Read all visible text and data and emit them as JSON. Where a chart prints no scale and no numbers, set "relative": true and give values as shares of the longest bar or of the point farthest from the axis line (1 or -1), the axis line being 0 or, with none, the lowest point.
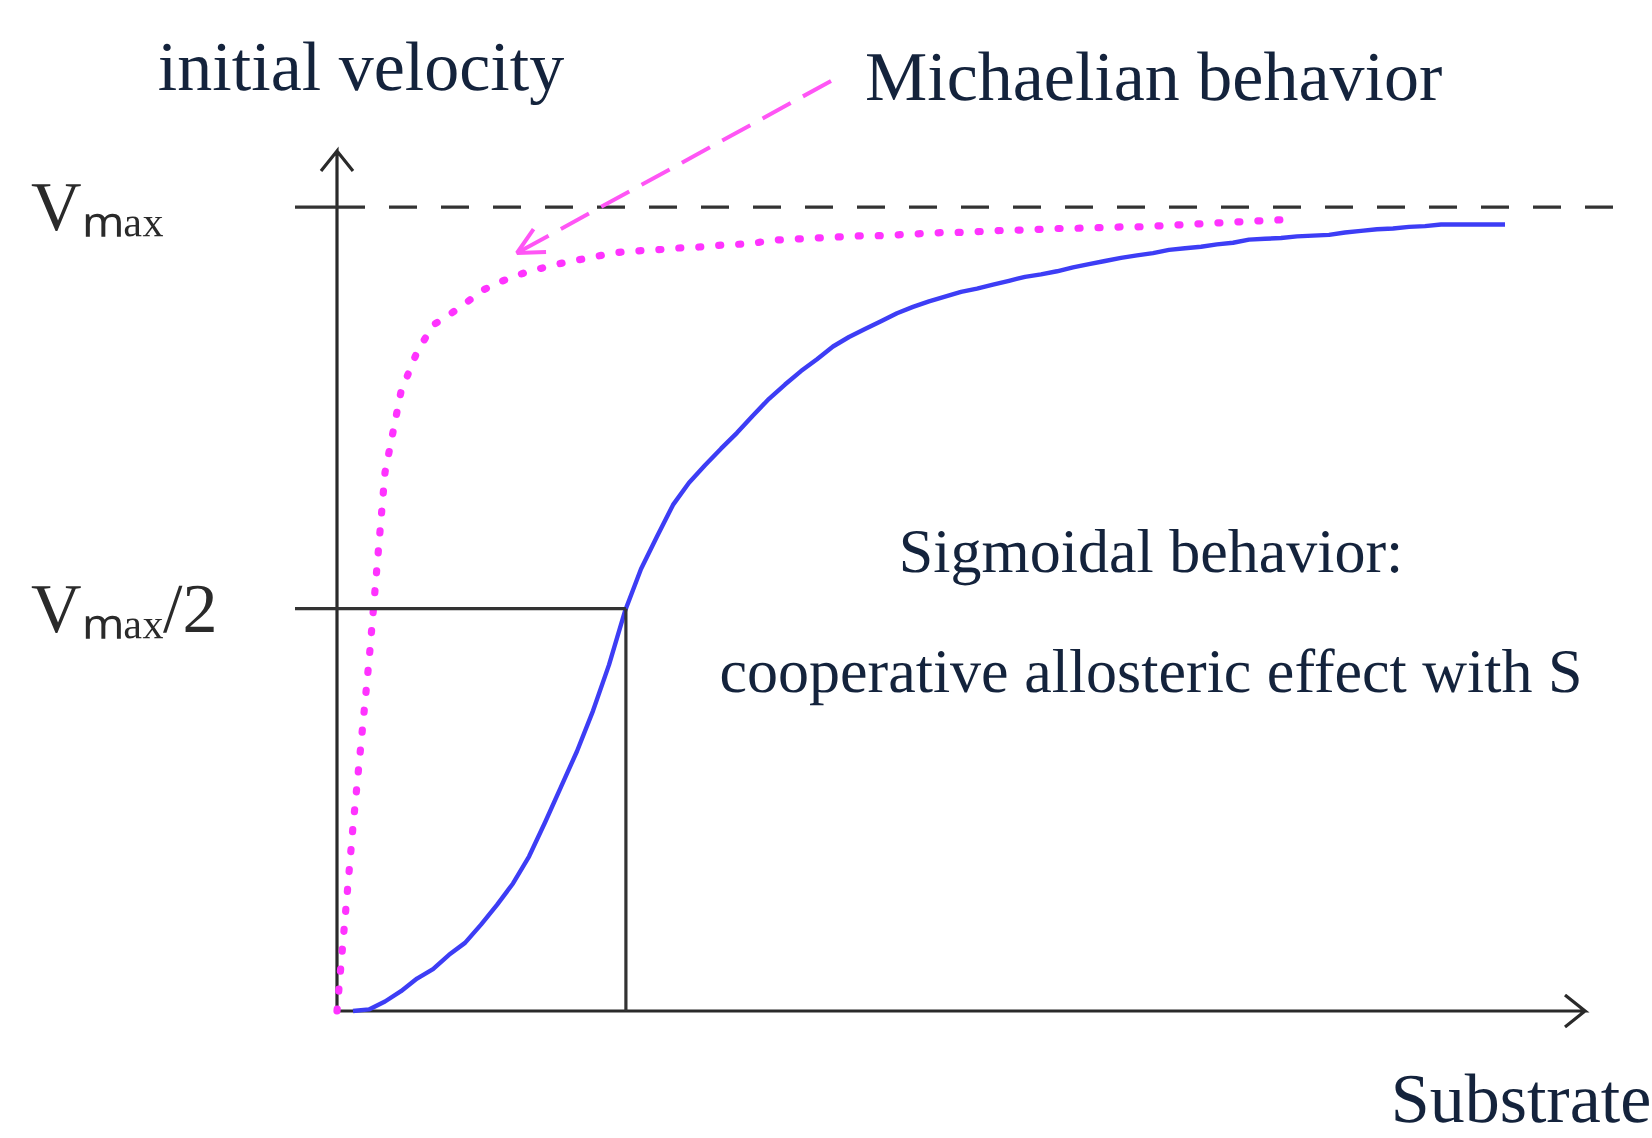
{
  "chart_data": {
    "type": "line",
    "relative": true,
    "ylabel": "initial velocity",
    "xlabel": "Substrate",
    "categories": [
      null,
      null,
      null,
      null,
      null,
      null,
      null,
      null,
      null,
      null,
      null,
      null,
      null,
      null,
      null,
      null,
      null,
      null,
      null,
      null,
      null,
      null,
      null,
      null,
      null,
      null,
      null,
      null,
      null,
      null,
      null,
      null,
      null,
      null,
      null,
      null,
      null,
      null,
      null,
      null,
      null,
      null,
      null,
      null,
      null,
      null,
      null,
      null,
      null,
      null,
      null,
      null,
      null,
      null,
      null,
      null,
      null,
      null,
      null,
      null,
      null,
      null,
      null,
      null,
      null,
      null,
      null,
      null,
      null,
      null,
      null,
      null,
      null,
      null,
      null,
      null,
      null,
      null,
      null
    ],
    "series": [
      {
        "color": "#ff33ff",
        "line_style": "dotted",
        "values": [
          0,
          0.233,
          0.442,
          0.68,
          0.782,
          0.832,
          0.866,
          0.879,
          0.893,
          0.909,
          0.919,
          0.927,
          0.934,
          0.939,
          0.944,
          0.948,
          0.952,
          0.956,
          0.959,
          0.96,
          0.961,
          0.963,
          0.964,
          0.965,
          0.967,
          0.968,
          0.969,
          0.973,
          0.974,
          0.975,
          0.976,
          0.977,
          0.978,
          0.979,
          0.979,
          0.98,
          0.981,
          0.982,
          0.983,
          0.983,
          0.984,
          0.985,
          0.986,
          0.986,
          0.987,
          0.988,
          0.988,
          0.989,
          0.989,
          0.99,
          0.99,
          0.991,
          0.992,
          0.993,
          0.994,
          0.995,
          0.996,
          0.997,
          0.998,
          0.999,
          1,
          null,
          null,
          null,
          null,
          null,
          null,
          null,
          null,
          null,
          null,
          null,
          null,
          null,
          null,
          null,
          null,
          null,
          null
        ]
      },
      {
        "color": "#3d3df5",
        "line_style": "solid",
        "values": [
          null,
          0,
          0.002,
          0.012,
          0.025,
          0.041,
          0.053,
          0.071,
          0.086,
          0.109,
          0.134,
          0.161,
          0.195,
          0.238,
          0.283,
          0.328,
          0.379,
          0.437,
          0.505,
          0.558,
          0.599,
          0.639,
          0.667,
          0.689,
          0.71,
          0.73,
          0.752,
          0.773,
          0.791,
          0.808,
          0.823,
          0.839,
          0.851,
          0.861,
          0.871,
          0.881,
          0.889,
          0.896,
          0.902,
          0.908,
          0.912,
          0.917,
          0.922,
          0.927,
          0.93,
          0.934,
          0.939,
          0.943,
          0.947,
          0.951,
          0.954,
          0.957,
          0.961,
          0.963,
          0.965,
          0.968,
          0.97,
          0.974,
          0.975,
          0.976,
          0.978,
          0.979,
          0.98,
          0.983,
          0.985,
          0.987,
          0.988,
          0.99,
          0.991,
          0.993,
          0.993,
          0.993,
          0.993,
          0.993,
          null,
          null,
          null,
          null,
          null
        ]
      }
    ],
    "ref_lines": [
      {
        "axis": "y",
        "value": 1.015,
        "label": "Vₘₐₓ",
        "color": "#333333",
        "line_style": "dashed"
      },
      {
        "axis": "y",
        "value": 0.508,
        "label": "Vₘₐₓ/2",
        "color": "#333333",
        "line_style": "solid"
      }
    ],
    "annotations": [
      "Michaelian behavior",
      "Sigmoidal behavior:",
      "cooperative allosteric effect with S"
    ]
  }
}
